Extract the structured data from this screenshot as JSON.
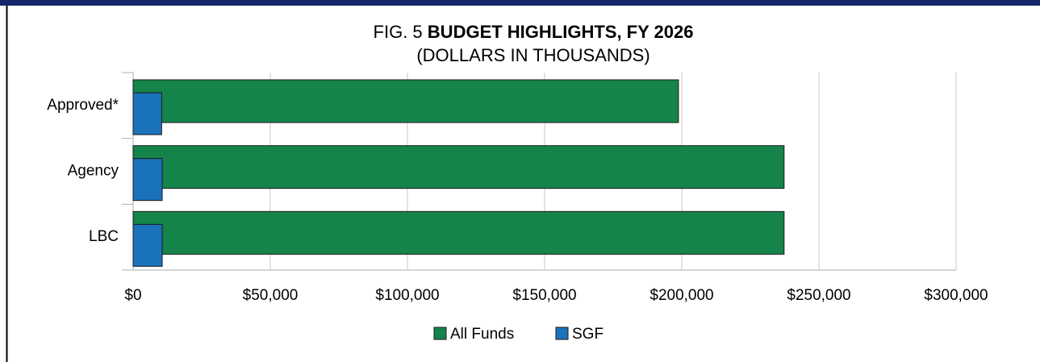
{
  "chart_data": {
    "type": "hbar_overlap",
    "title_label": "FIG. 5",
    "title": "BUDGET HIGHLIGHTS, FY 2026",
    "subtitle": "(DOLLARS IN THOUSANDS)",
    "categories": [
      "Approved*",
      "Agency",
      "LBC"
    ],
    "series": [
      {
        "name": "All Funds",
        "color": "#15844a",
        "values": [
          198800,
          237300,
          237300
        ]
      },
      {
        "name": "SGF",
        "color": "#1a72bb",
        "values": [
          10400,
          10600,
          10600
        ]
      }
    ],
    "xlim": [
      0,
      300000
    ],
    "xticks": [
      {
        "value": 0,
        "label": "$0"
      },
      {
        "value": 50000,
        "label": "$50,000"
      },
      {
        "value": 100000,
        "label": "$100,000"
      },
      {
        "value": 150000,
        "label": "$150,000"
      },
      {
        "value": 200000,
        "label": "$200,000"
      },
      {
        "value": 250000,
        "label": "$250,000"
      },
      {
        "value": 300000,
        "label": "$300,000"
      }
    ],
    "grid": true,
    "legend": "bottom"
  }
}
